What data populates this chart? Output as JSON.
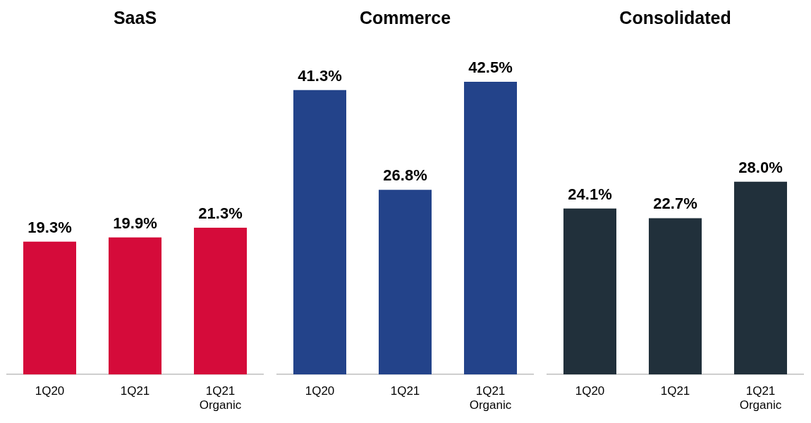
{
  "chart_data": [
    {
      "type": "bar",
      "title": "SaaS",
      "categories": [
        "1Q20",
        "1Q21",
        "1Q21 Organic"
      ],
      "values": [
        19.3,
        19.9,
        21.3
      ],
      "value_labels": [
        "19.3%",
        "19.9%",
        "21.3%"
      ],
      "color": "#d50b3a",
      "tick_labels": "x",
      "legend": false,
      "grid": false
    },
    {
      "type": "bar",
      "title": "Commerce",
      "categories": [
        "1Q20",
        "1Q21",
        "1Q21 Organic"
      ],
      "values": [
        41.3,
        26.8,
        42.5
      ],
      "value_labels": [
        "41.3%",
        "26.8%",
        "42.5%"
      ],
      "color": "#23438a",
      "tick_labels": "x",
      "legend": false,
      "grid": false
    },
    {
      "type": "bar",
      "title": "Consolidated",
      "categories": [
        "1Q20",
        "1Q21",
        "1Q21 Organic"
      ],
      "values": [
        24.1,
        22.7,
        28.0
      ],
      "value_labels": [
        "24.1%",
        "22.7%",
        "28.0%"
      ],
      "color": "#21303b",
      "tick_labels": "x",
      "legend": false,
      "grid": false
    }
  ]
}
